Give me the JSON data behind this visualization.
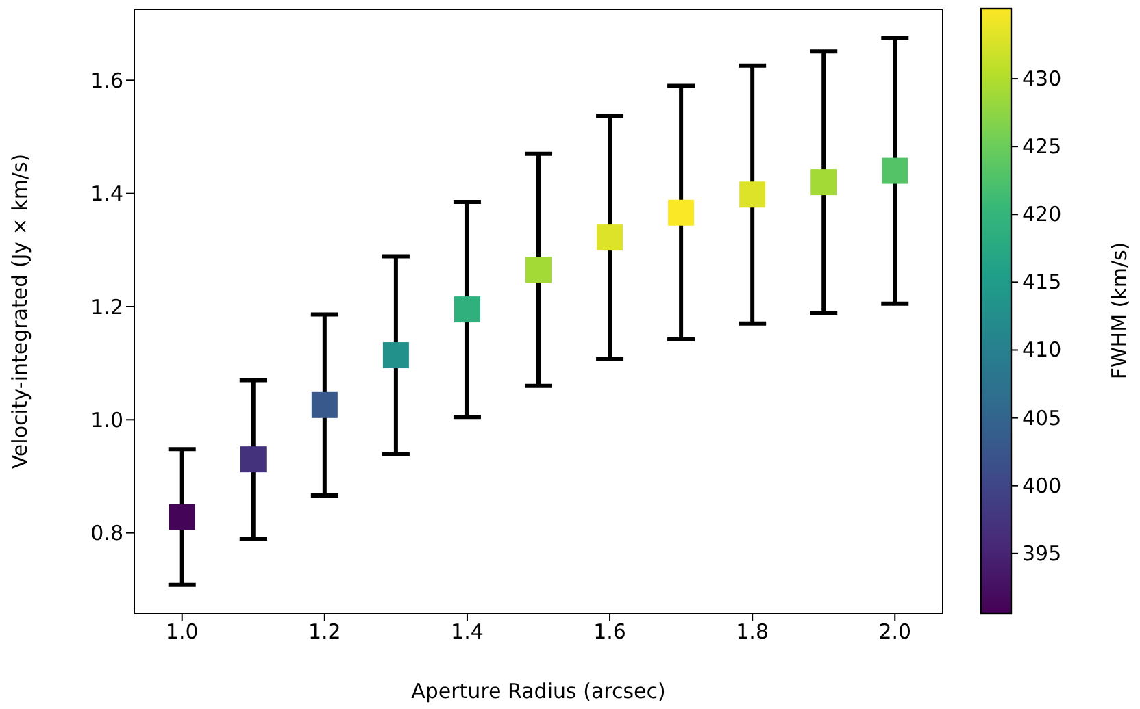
{
  "chart_data": {
    "type": "scatter",
    "xlabel": "Aperture Radius (arcsec)",
    "ylabel": "Velocity-integrated (Jy × km/s)",
    "clabel": "FWHM (km/s)",
    "x": [
      1.0,
      1.1,
      1.2,
      1.3,
      1.4,
      1.5,
      1.6,
      1.7,
      1.8,
      1.9,
      2.0
    ],
    "values": [
      0.828,
      0.93,
      1.026,
      1.114,
      1.195,
      1.265,
      1.322,
      1.366,
      1.398,
      1.42,
      1.44
    ],
    "errors": [
      0.12,
      0.14,
      0.16,
      0.175,
      0.19,
      0.205,
      0.215,
      0.224,
      0.228,
      0.231,
      0.235
    ],
    "cvalues": [
      391,
      397,
      403,
      413,
      419,
      429,
      433,
      435,
      433,
      429,
      423
    ],
    "clim": [
      390.6,
      435.2
    ],
    "cticks": [
      395,
      400,
      405,
      410,
      415,
      420,
      425,
      430
    ],
    "xlim": [
      0.933,
      2.067
    ],
    "xticks": [
      {
        "value": 1.0,
        "label": "1.0"
      },
      1.2,
      1.4,
      1.6,
      1.8,
      {
        "value": 2.0,
        "label": "2.0"
      }
    ],
    "ylim": [
      0.658,
      1.725
    ],
    "yticks": [
      0.8,
      {
        "value": 1.0,
        "label": "1.0"
      },
      1.2,
      1.4,
      1.6
    ],
    "marker": "square",
    "grid": false,
    "legend": false
  }
}
